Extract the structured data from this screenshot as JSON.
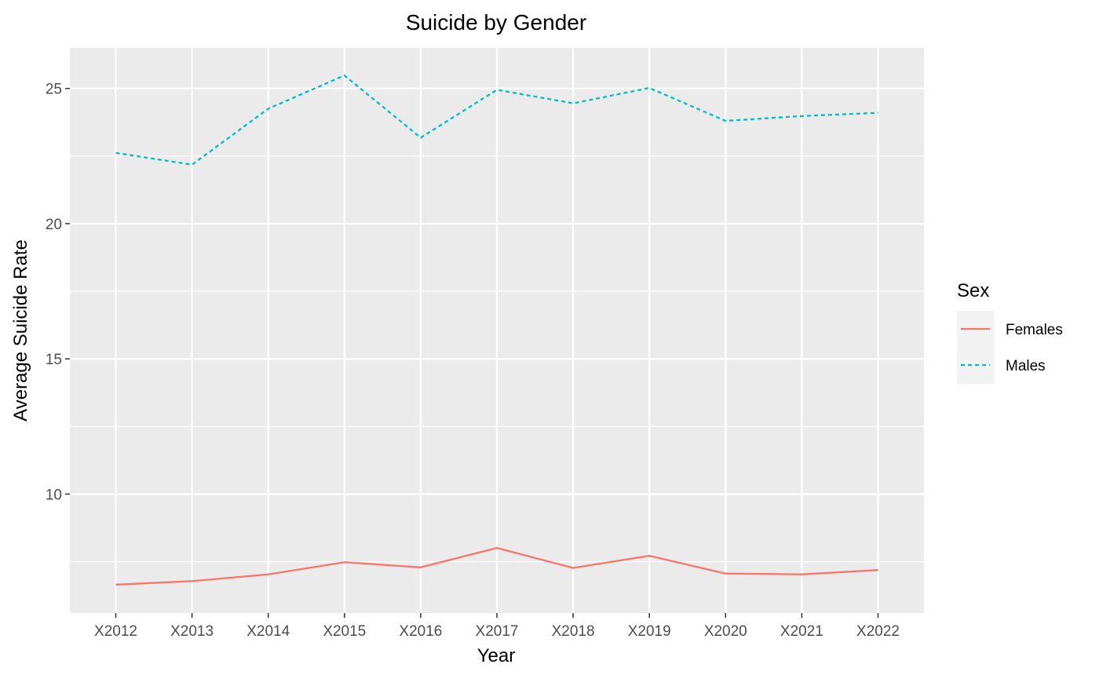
{
  "chart_data": {
    "type": "line",
    "title": "Suicide by Gender",
    "xlabel": "Year",
    "ylabel": "Average Suicide Rate",
    "categories": [
      "X2012",
      "X2013",
      "X2014",
      "X2015",
      "X2016",
      "X2017",
      "X2018",
      "X2019",
      "X2020",
      "X2021",
      "X2022"
    ],
    "ylim": [
      5.6,
      26.5
    ],
    "yticks": [
      10,
      15,
      20,
      25
    ],
    "yminor": [
      7.5,
      12.5,
      17.5,
      22.5
    ],
    "grid": true,
    "legend": {
      "title": "Sex",
      "position": "right"
    },
    "series": [
      {
        "name": "Females",
        "color": "#F8766D",
        "dash": "solid",
        "values": [
          6.65,
          6.78,
          7.03,
          7.48,
          7.29,
          8.01,
          7.27,
          7.72,
          7.06,
          7.03,
          7.19
        ]
      },
      {
        "name": "Males",
        "color": "#00BFC4",
        "dash": "dotted",
        "values": [
          22.62,
          22.18,
          24.25,
          25.48,
          23.18,
          24.95,
          24.45,
          25.02,
          23.8,
          23.98,
          24.1
        ]
      }
    ]
  }
}
